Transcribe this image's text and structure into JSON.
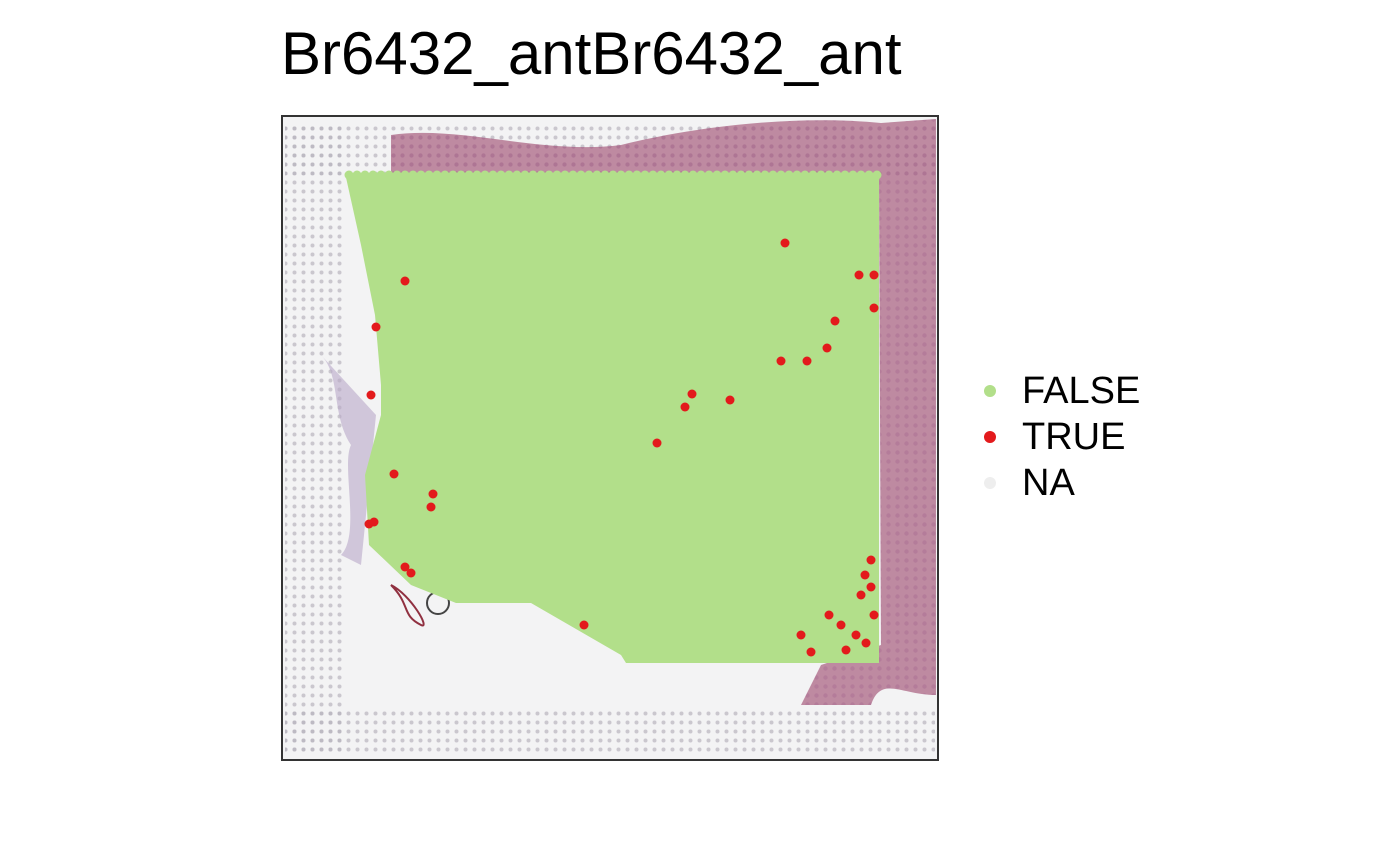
{
  "title": "Br6432_antBr6432_ant",
  "legend": {
    "items": [
      {
        "label": "FALSE",
        "color": "#b2df8a"
      },
      {
        "label": "TRUE",
        "color": "#e31a1c"
      },
      {
        "label": "NA",
        "color": "#eeeeee"
      }
    ]
  },
  "colors": {
    "background_tissue": "#f2f2f2",
    "stain": "#a06080",
    "panel_border": "#333333"
  }
}
